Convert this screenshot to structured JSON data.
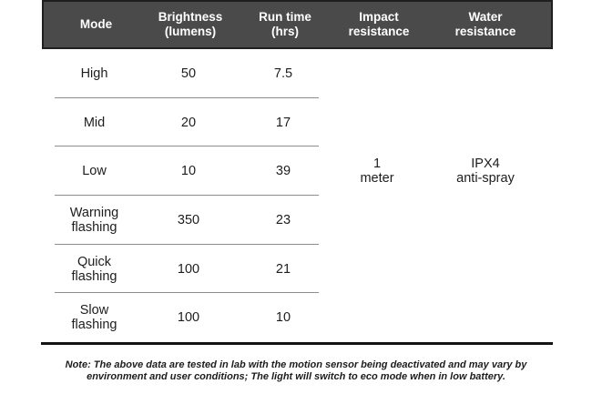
{
  "chart_data": {
    "type": "table",
    "columns": [
      "Mode",
      "Brightness\n(lumens)",
      "Run time\n(hrs)",
      "Impact\nresistance",
      "Water\nresistance"
    ],
    "rows": [
      {
        "mode": "High",
        "brightness": "50",
        "run_time": "7.5"
      },
      {
        "mode": "Mid",
        "brightness": "20",
        "run_time": "17"
      },
      {
        "mode": "Low",
        "brightness": "10",
        "run_time": "39"
      },
      {
        "mode": "Warning\nflashing",
        "brightness": "350",
        "run_time": "23"
      },
      {
        "mode": "Quick\nflashing",
        "brightness": "100",
        "run_time": "21"
      },
      {
        "mode": "Slow\nflashing",
        "brightness": "100",
        "run_time": "10"
      }
    ],
    "merged_cells": {
      "impact_resistance": "1\nmeter",
      "water_resistance": "IPX4\nanti-spray"
    },
    "note": "Note: The above data are tested in lab with the motion sensor being deactivated and may vary by environment and user conditions; The light will switch to eco mode when in low battery."
  },
  "colors": {
    "header_bg": "#4a4a4a",
    "header_border": "#1f1f1f",
    "header_text": "#ffffff",
    "body_text": "#1d1d1d",
    "row_divider": "#8e8e8e",
    "bottom_rule": "#141414"
  }
}
